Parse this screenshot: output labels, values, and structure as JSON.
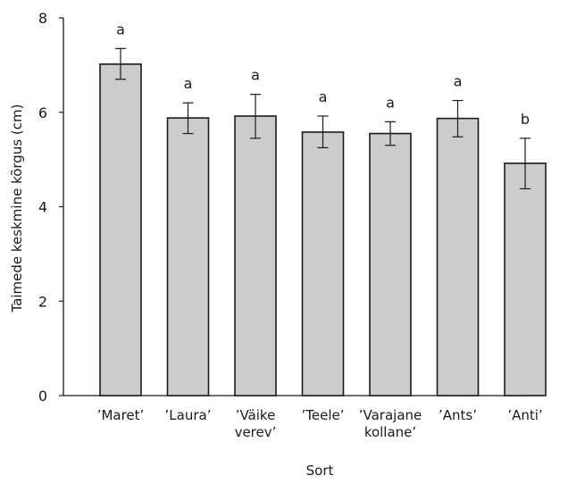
{
  "chart_data": {
    "type": "bar",
    "title": "",
    "xlabel": "Sort",
    "ylabel": "Taimede keskmine kõrgus (cm)",
    "ylim": [
      0,
      8
    ],
    "yticks": [
      "0",
      "2",
      "4",
      "6",
      "8"
    ],
    "grid": false,
    "categories": [
      [
        "’Maret’"
      ],
      [
        "’Laura’"
      ],
      [
        "’Väike",
        "verev’"
      ],
      [
        "’Teele’"
      ],
      [
        "’Varajane",
        "kollane’"
      ],
      [
        "’Ants’"
      ],
      [
        "’Anti’"
      ]
    ],
    "values": [
      7.02,
      5.88,
      5.92,
      5.58,
      5.55,
      5.87,
      4.92
    ],
    "error_low": [
      6.7,
      5.55,
      5.45,
      5.25,
      5.3,
      5.48,
      4.38
    ],
    "error_high": [
      7.35,
      6.2,
      6.38,
      5.92,
      5.8,
      6.25,
      5.45
    ],
    "significance_letters": [
      "a",
      "a",
      "a",
      "a",
      "a",
      "a",
      "b"
    ],
    "bar_color": "#cccccc",
    "bar_edge_color": "#1a1a1a"
  }
}
